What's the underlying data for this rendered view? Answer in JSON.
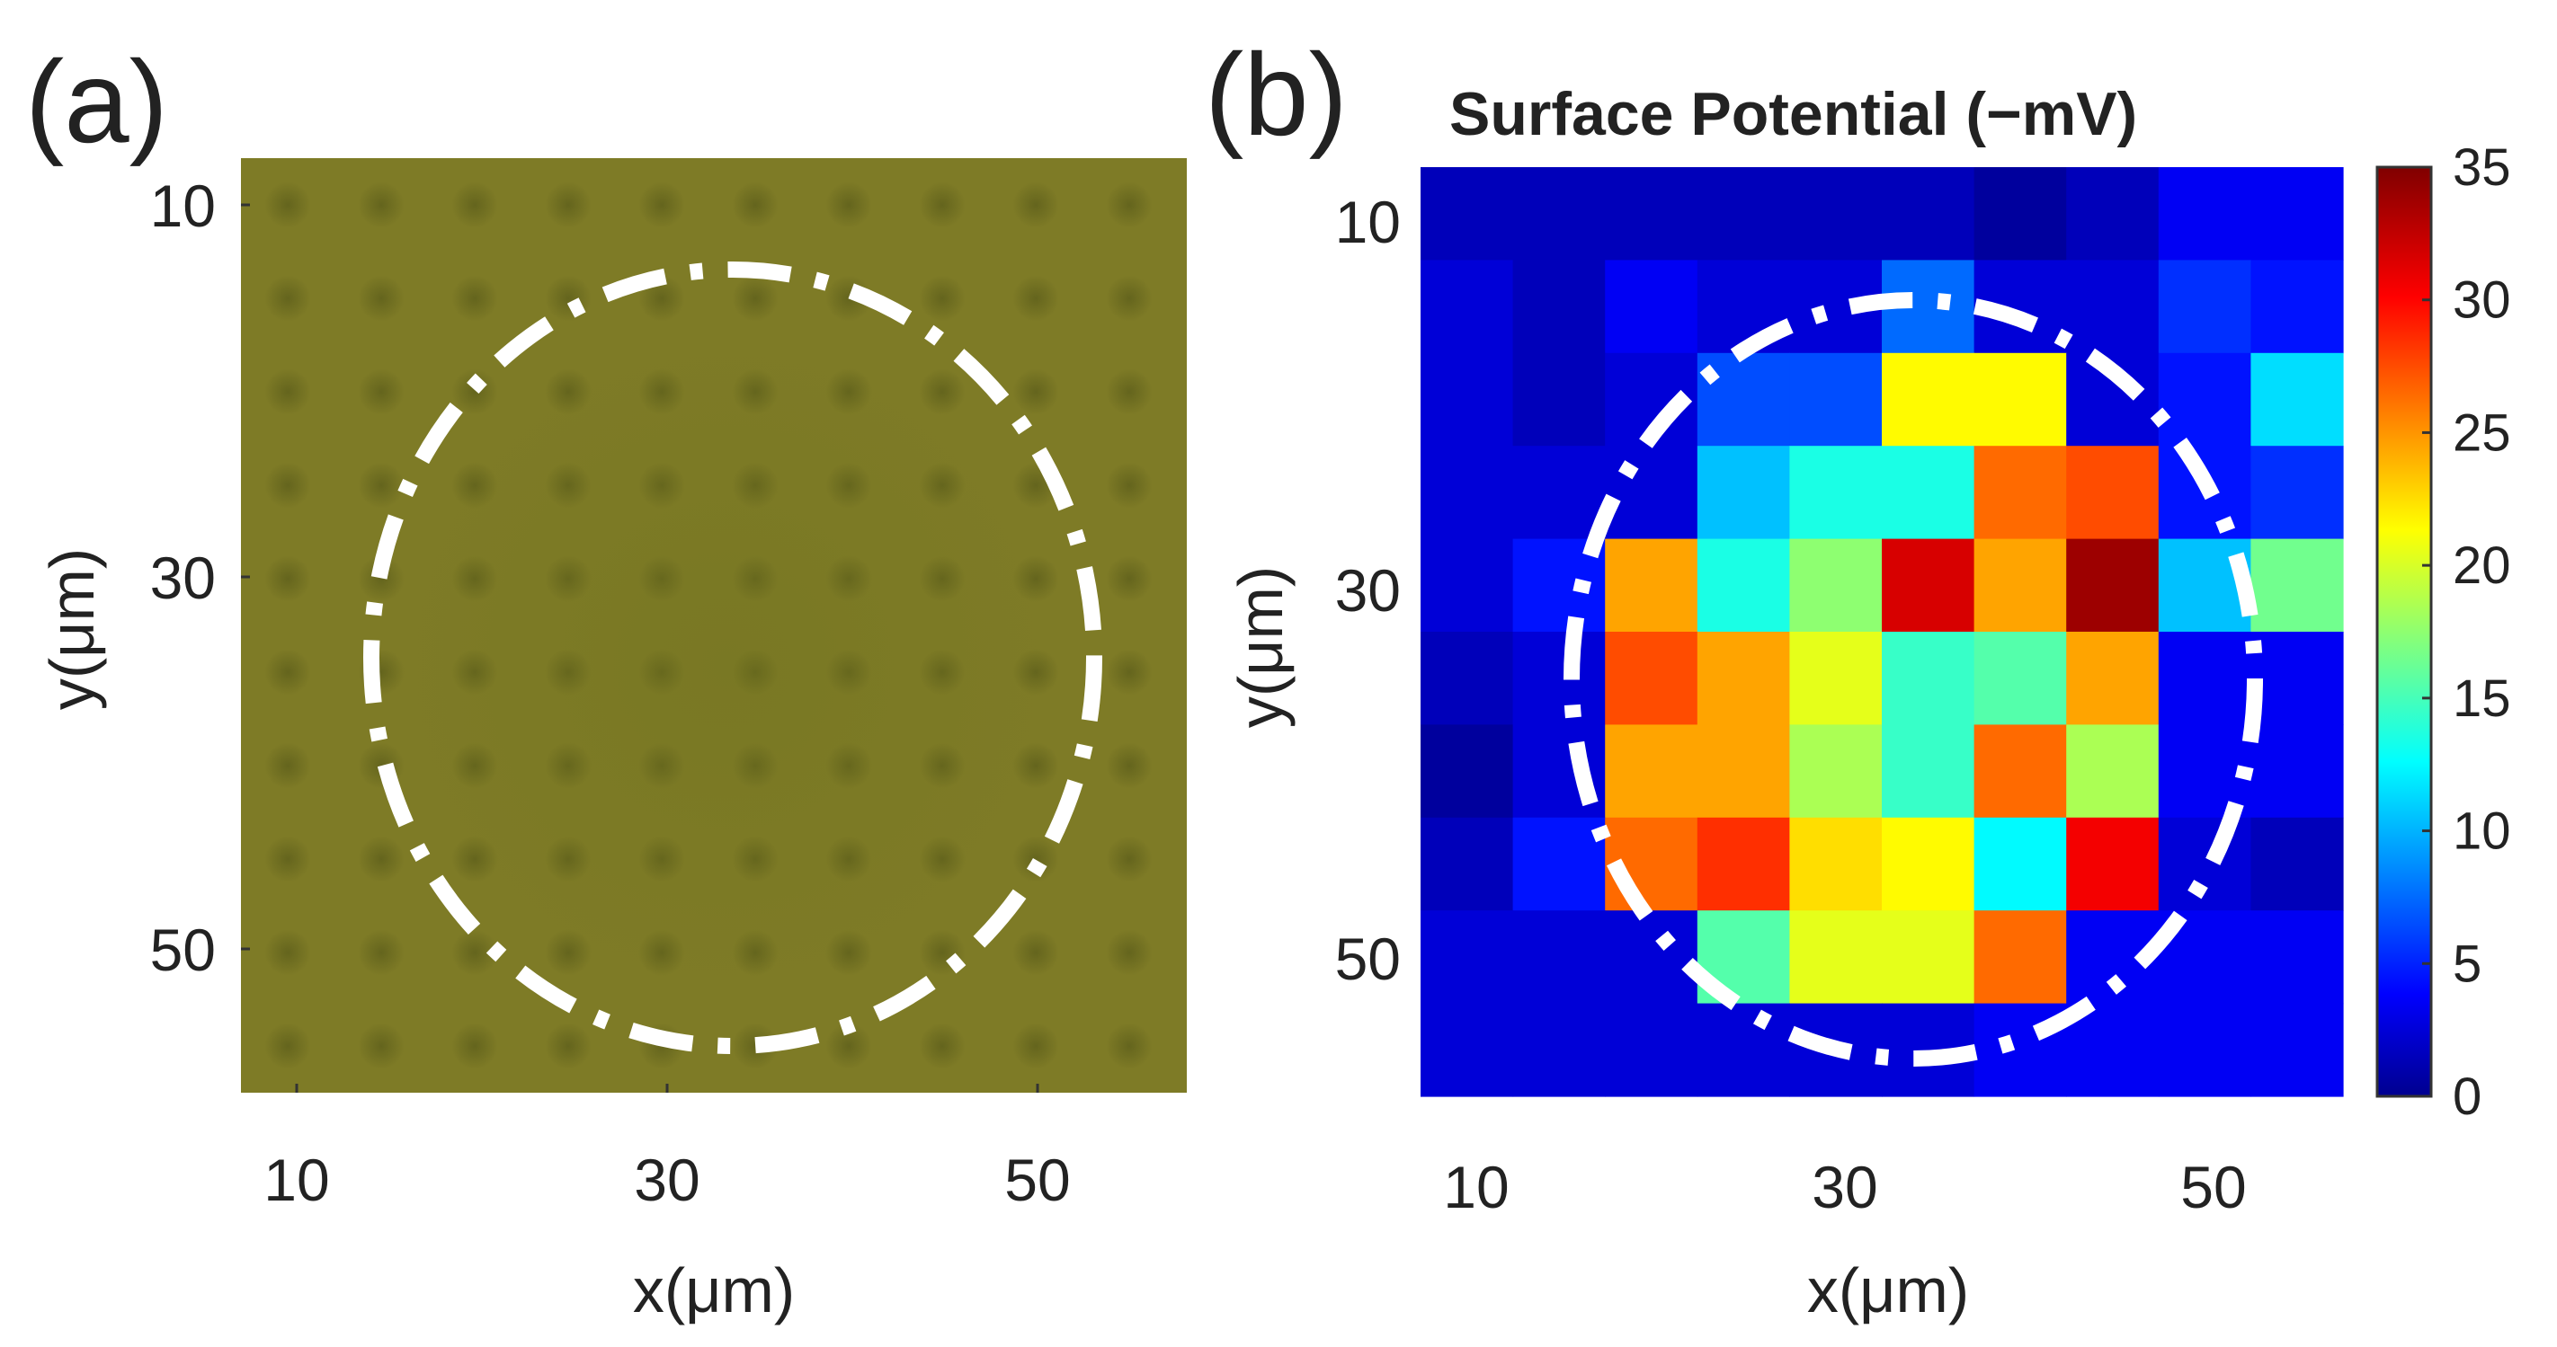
{
  "panel_a": {
    "label": "(a)",
    "xlabel": "x(μm)",
    "ylabel": "y(μm)",
    "xticks": [
      "10",
      "30",
      "50"
    ],
    "yticks": [
      "10",
      "30",
      "50"
    ]
  },
  "panel_b": {
    "label": "(b)",
    "title": "Surface Potential (−mV)",
    "xlabel": "x(μm)",
    "ylabel": "y(μm)",
    "xticks": [
      "10",
      "30",
      "50"
    ],
    "yticks": [
      "10",
      "30",
      "50"
    ],
    "colorbar_ticks": [
      "0",
      "5",
      "10",
      "15",
      "20",
      "25",
      "30",
      "35"
    ]
  },
  "chart_data": [
    {
      "type": "image",
      "panel": "a",
      "description_free": true,
      "xlabel": "x(μm)",
      "ylabel": "y(μm)",
      "xlim": [
        7,
        58
      ],
      "ylim": [
        7,
        58
      ],
      "xticks": [
        10,
        30,
        50
      ],
      "yticks": [
        10,
        30,
        50
      ],
      "background_color": "#7e7b26",
      "circle_outline": {
        "center_x": 32,
        "center_y": 36,
        "radius": 20
      }
    },
    {
      "type": "heatmap",
      "panel": "b",
      "title": "Surface Potential (−mV)",
      "xlabel": "x(μm)",
      "ylabel": "y(μm)",
      "xlim": [
        7.5,
        57.5
      ],
      "ylim": [
        7.5,
        57.5
      ],
      "x": [
        10,
        15,
        20,
        25,
        30,
        35,
        40,
        45,
        50,
        55
      ],
      "y": [
        10,
        15,
        20,
        25,
        30,
        35,
        40,
        45,
        50,
        55
      ],
      "xticks": [
        10,
        30,
        50
      ],
      "yticks": [
        10,
        30,
        50
      ],
      "clim": [
        0,
        35
      ],
      "colormap": "jet",
      "z": [
        [
          2,
          2,
          2,
          2,
          2,
          2,
          1,
          2,
          4,
          4
        ],
        [
          3,
          2,
          4,
          3,
          3,
          8,
          3,
          3,
          6,
          5
        ],
        [
          3,
          2,
          3,
          7,
          7,
          22,
          22,
          3,
          5,
          12
        ],
        [
          3,
          3,
          3,
          11,
          14,
          14,
          27,
          28,
          5,
          6
        ],
        [
          3,
          5,
          25,
          14,
          18,
          32,
          25,
          34,
          11,
          17
        ],
        [
          2,
          3,
          28,
          25,
          21,
          15,
          16,
          25,
          4,
          4
        ],
        [
          1,
          3,
          25,
          25,
          19,
          15,
          27,
          19,
          4,
          4
        ],
        [
          2,
          5,
          27,
          29,
          23,
          22,
          13,
          31,
          3,
          2
        ],
        [
          3,
          3,
          3,
          16,
          21,
          21,
          27,
          4,
          4,
          4
        ],
        [
          3,
          3,
          3,
          3,
          3,
          3,
          4,
          4,
          4,
          4
        ]
      ],
      "circle_outline": {
        "center_x": 32,
        "center_y": 36,
        "radius": 20
      }
    }
  ]
}
